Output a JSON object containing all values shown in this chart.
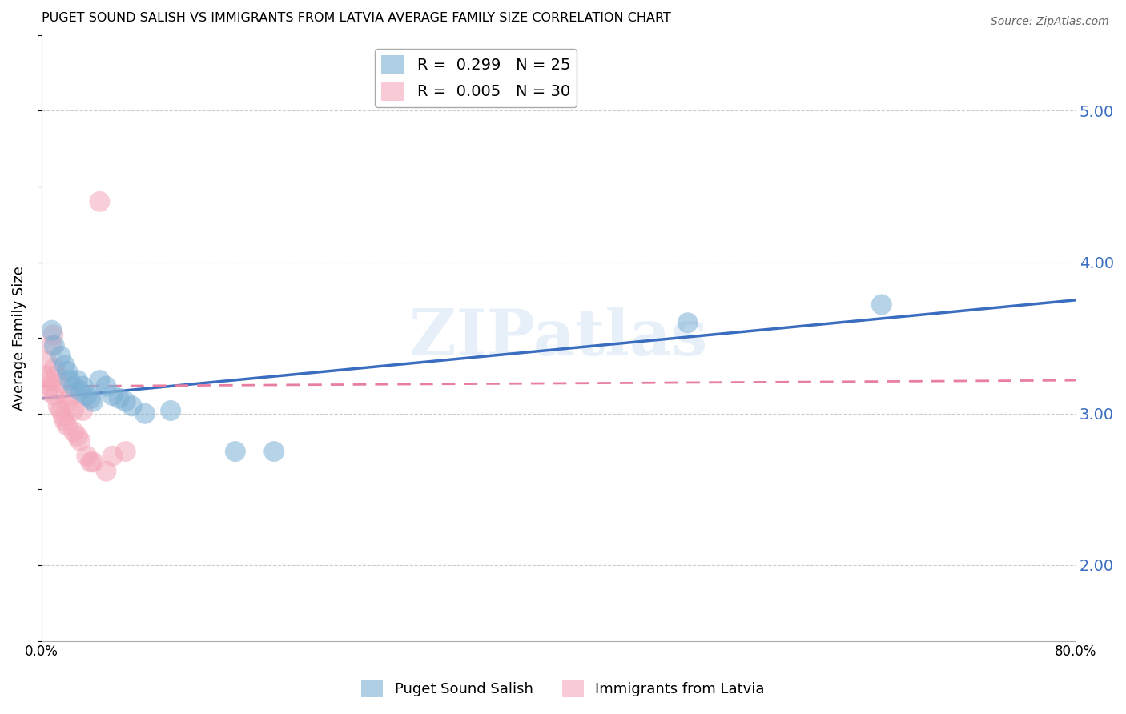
{
  "title": "PUGET SOUND SALISH VS IMMIGRANTS FROM LATVIA AVERAGE FAMILY SIZE CORRELATION CHART",
  "source": "Source: ZipAtlas.com",
  "ylabel": "Average Family Size",
  "xlabel": "",
  "xlim": [
    0.0,
    0.8
  ],
  "ylim": [
    1.5,
    5.5
  ],
  "yticks_right": [
    2.0,
    3.0,
    4.0,
    5.0
  ],
  "xticks": [
    0.0,
    0.1,
    0.2,
    0.3,
    0.4,
    0.5,
    0.6,
    0.7,
    0.8
  ],
  "xtick_labels": [
    "0.0%",
    "",
    "",
    "",
    "",
    "",
    "",
    "",
    "80.0%"
  ],
  "background_color": "#ffffff",
  "grid_color": "#cccccc",
  "blue_color": "#7bafd4",
  "pink_color": "#f4a7b9",
  "blue_line_color": "#3a6dbf",
  "pink_line_color": "#e87fa0",
  "legend_blue_R": "R =  0.299",
  "legend_blue_N": "N = 25",
  "legend_pink_R": "R =  0.005",
  "legend_pink_N": "N = 30",
  "watermark": "ZIPatlas",
  "blue_line": [
    0.0,
    3.1,
    0.8,
    3.75
  ],
  "pink_line": [
    0.0,
    3.18,
    0.8,
    3.22
  ],
  "blue_x": [
    0.008,
    0.01,
    0.015,
    0.018,
    0.02,
    0.022,
    0.025,
    0.028,
    0.03,
    0.032,
    0.035,
    0.038,
    0.04,
    0.045,
    0.05,
    0.055,
    0.06,
    0.065,
    0.07,
    0.08,
    0.1,
    0.15,
    0.18,
    0.5,
    0.65
  ],
  "blue_y": [
    3.55,
    3.45,
    3.38,
    3.32,
    3.28,
    3.22,
    3.18,
    3.22,
    3.15,
    3.18,
    3.12,
    3.1,
    3.08,
    3.22,
    3.18,
    3.12,
    3.1,
    3.08,
    3.05,
    3.0,
    3.02,
    2.75,
    2.75,
    3.6,
    3.72
  ],
  "pink_x": [
    0.003,
    0.004,
    0.005,
    0.006,
    0.007,
    0.008,
    0.009,
    0.01,
    0.01,
    0.012,
    0.013,
    0.015,
    0.015,
    0.017,
    0.018,
    0.02,
    0.02,
    0.022,
    0.025,
    0.025,
    0.028,
    0.03,
    0.032,
    0.035,
    0.038,
    0.04,
    0.045,
    0.05,
    0.055,
    0.065
  ],
  "pink_y": [
    3.25,
    3.35,
    3.15,
    3.22,
    3.18,
    3.45,
    3.52,
    3.3,
    3.12,
    3.25,
    3.05,
    3.2,
    3.02,
    2.98,
    2.95,
    2.92,
    3.08,
    3.12,
    3.02,
    2.88,
    2.85,
    2.82,
    3.02,
    2.72,
    2.68,
    2.68,
    4.4,
    2.62,
    2.72,
    2.75
  ]
}
